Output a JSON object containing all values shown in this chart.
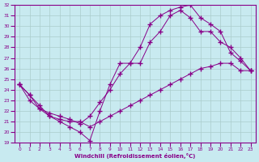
{
  "xlabel": "Windchill (Refroidissement éolien,°C)",
  "bg_color": "#c8eaf0",
  "line_color": "#880088",
  "marker_color": "#880088",
  "xlim": [
    -0.5,
    23.5
  ],
  "ylim": [
    19,
    32
  ],
  "yticks": [
    19,
    20,
    21,
    22,
    23,
    24,
    25,
    26,
    27,
    28,
    29,
    30,
    31,
    32
  ],
  "xticks": [
    0,
    1,
    2,
    3,
    4,
    5,
    6,
    7,
    8,
    9,
    10,
    11,
    12,
    13,
    14,
    15,
    16,
    17,
    18,
    19,
    20,
    21,
    22,
    23
  ],
  "grid_color": "#aacccc",
  "series": [
    {
      "x": [
        0,
        1,
        2,
        3,
        4,
        5,
        6,
        7,
        8,
        9,
        10,
        11,
        12,
        13,
        14,
        15,
        16,
        17,
        18,
        19,
        20,
        21,
        22,
        23
      ],
      "y": [
        24.5,
        23.5,
        22.5,
        21.5,
        21.0,
        20.5,
        20.0,
        19.2,
        22.0,
        24.5,
        26.5,
        26.5,
        28.0,
        30.2,
        31.0,
        31.5,
        31.8,
        32.0,
        30.8,
        30.2,
        29.5,
        27.5,
        26.7,
        25.8
      ],
      "linestyle": "-",
      "marker": "+",
      "markersize": 4
    },
    {
      "x": [
        0,
        1,
        2,
        3,
        4,
        5,
        6,
        7,
        8,
        9,
        10,
        11,
        12,
        13,
        14,
        15,
        16,
        17,
        18,
        19,
        20,
        21,
        22,
        23
      ],
      "y": [
        24.5,
        23.5,
        22.2,
        21.8,
        21.5,
        21.2,
        20.8,
        21.5,
        22.8,
        24.0,
        25.5,
        26.5,
        26.5,
        28.5,
        29.5,
        31.0,
        31.5,
        30.8,
        29.5,
        29.5,
        28.5,
        28.0,
        27.0,
        25.8
      ],
      "linestyle": "-",
      "marker": "+",
      "markersize": 4
    },
    {
      "x": [
        0,
        1,
        2,
        3,
        4,
        5,
        6,
        7,
        8,
        9,
        10,
        11,
        12,
        13,
        14,
        15,
        16,
        17,
        18,
        19,
        20,
        21,
        22,
        23
      ],
      "y": [
        24.5,
        23.0,
        22.2,
        21.5,
        21.2,
        21.0,
        21.0,
        20.5,
        21.0,
        21.5,
        22.0,
        22.5,
        23.0,
        23.5,
        24.0,
        24.5,
        25.0,
        25.5,
        26.0,
        26.2,
        26.5,
        26.5,
        25.8,
        25.8
      ],
      "linestyle": "-",
      "marker": "+",
      "markersize": 4
    }
  ]
}
